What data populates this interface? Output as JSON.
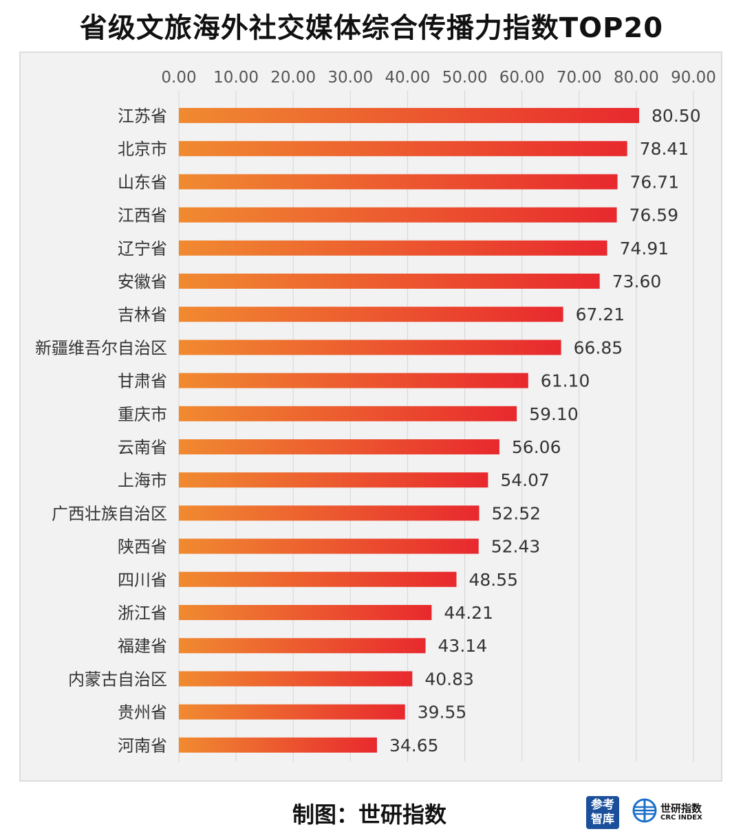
{
  "title": "省级文旅海外社交媒体综合传播力指数TOP20",
  "footer": {
    "credit": "制图：世研指数",
    "logo1_text": "参考智库",
    "logo2_cn": "世研指数",
    "logo2_en": "CRC INDEX"
  },
  "colors": {
    "bar_start": "#f08a30",
    "bar_end": "#e8292e",
    "panel_bg": "#f2f2f2",
    "gridline": "#d9d9d9"
  },
  "chart_data": {
    "type": "bar",
    "orientation": "horizontal",
    "title": "省级文旅海外社交媒体综合传播力指数TOP20",
    "xlim": [
      0,
      90
    ],
    "xticks": [
      "0.00",
      "10.00",
      "20.00",
      "30.00",
      "40.00",
      "50.00",
      "60.00",
      "70.00",
      "80.00",
      "90.00"
    ],
    "xaxis_position": "top",
    "grid": true,
    "categories": [
      "江苏省",
      "北京市",
      "山东省",
      "江西省",
      "辽宁省",
      "安徽省",
      "吉林省",
      "新疆维吾尔自治区",
      "甘肃省",
      "重庆市",
      "云南省",
      "上海市",
      "广西壮族自治区",
      "陕西省",
      "四川省",
      "浙江省",
      "福建省",
      "内蒙古自治区",
      "贵州省",
      "河南省"
    ],
    "values": [
      80.5,
      78.41,
      76.71,
      76.59,
      74.91,
      73.6,
      67.21,
      66.85,
      61.1,
      59.1,
      56.06,
      54.07,
      52.52,
      52.43,
      48.55,
      44.21,
      43.14,
      40.83,
      39.55,
      34.65
    ],
    "value_labels": [
      "80.50",
      "78.41",
      "76.71",
      "76.59",
      "74.91",
      "73.60",
      "67.21",
      "66.85",
      "61.10",
      "59.10",
      "56.06",
      "54.07",
      "52.52",
      "52.43",
      "48.55",
      "44.21",
      "43.14",
      "40.83",
      "39.55",
      "34.65"
    ]
  }
}
